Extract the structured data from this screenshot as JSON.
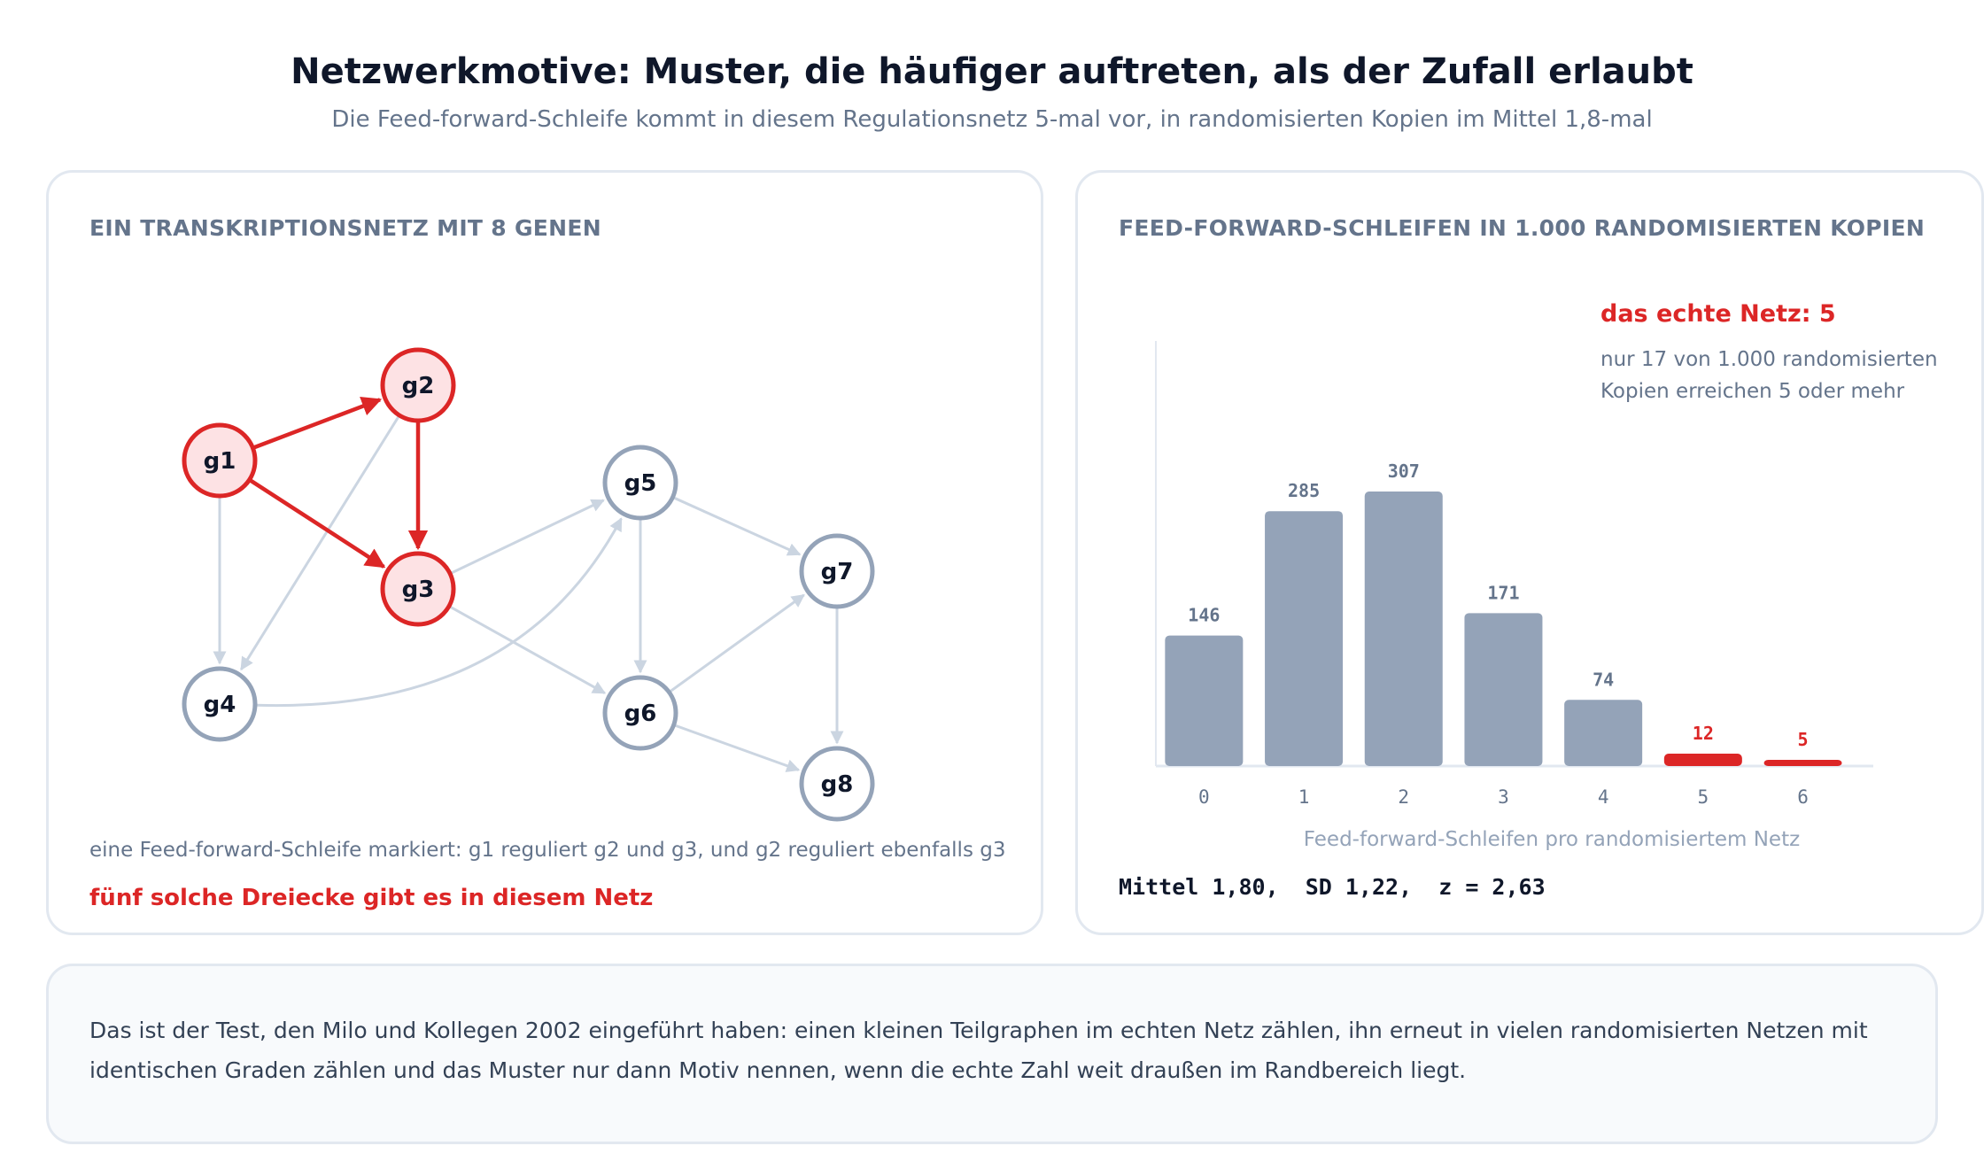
{
  "header": {
    "title": "Netzwerkmotive: Muster, die häufiger auftreten, als der Zufall erlaubt",
    "subtitle": "Die Feed-forward-Schleife kommt in diesem Regulationsnetz 5-mal vor, in randomisierten Kopien im Mittel 1,8-mal"
  },
  "network": {
    "heading": "EIN TRANSKRIPTIONSNETZ MIT 8 GENEN",
    "nodes": [
      {
        "id": "g1",
        "label": "g1",
        "highlight": true
      },
      {
        "id": "g2",
        "label": "g2",
        "highlight": true
      },
      {
        "id": "g3",
        "label": "g3",
        "highlight": true
      },
      {
        "id": "g4",
        "label": "g4",
        "highlight": false
      },
      {
        "id": "g5",
        "label": "g5",
        "highlight": false
      },
      {
        "id": "g6",
        "label": "g6",
        "highlight": false
      },
      {
        "id": "g7",
        "label": "g7",
        "highlight": false
      },
      {
        "id": "g8",
        "label": "g8",
        "highlight": false
      }
    ],
    "edges": [
      {
        "from": "g1",
        "to": "g2",
        "highlight": true
      },
      {
        "from": "g1",
        "to": "g3",
        "highlight": true
      },
      {
        "from": "g2",
        "to": "g3",
        "highlight": true
      },
      {
        "from": "g1",
        "to": "g4",
        "highlight": false
      },
      {
        "from": "g2",
        "to": "g4",
        "highlight": false
      },
      {
        "from": "g3",
        "to": "g5",
        "highlight": false
      },
      {
        "from": "g3",
        "to": "g6",
        "highlight": false
      },
      {
        "from": "g4",
        "to": "g5",
        "highlight": false,
        "curved": true
      },
      {
        "from": "g5",
        "to": "g6",
        "highlight": false
      },
      {
        "from": "g5",
        "to": "g7",
        "highlight": false
      },
      {
        "from": "g6",
        "to": "g7",
        "highlight": false
      },
      {
        "from": "g6",
        "to": "g8",
        "highlight": false
      },
      {
        "from": "g7",
        "to": "g8",
        "highlight": false
      }
    ],
    "caption": "eine Feed-forward-Schleife markiert: g1 reguliert g2 und g3, und g2 reguliert ebenfalls g3",
    "emphasis": "fünf solche Dreiecke gibt es in diesem Netz"
  },
  "chart": {
    "heading": "FEED-FORWARD-SCHLEIFEN IN 1.000 RANDOMISIERTEN KOPIEN",
    "annotation_title": "das echte Netz: 5",
    "annotation_line1": "nur 17 von 1.000 randomisierten",
    "annotation_line2": "Kopien erreichen 5 oder mehr",
    "stats": "Mittel 1,80,  SD 1,22,  z = 2,63"
  },
  "chart_data": {
    "type": "bar",
    "categories": [
      "0",
      "1",
      "2",
      "3",
      "4",
      "5",
      "6"
    ],
    "values": [
      146,
      285,
      307,
      171,
      74,
      12,
      5
    ],
    "highlight_categories": [
      "5",
      "6"
    ],
    "title": "FEED-FORWARD-SCHLEIFEN IN 1.000 RANDOMISIERTEN KOPIEN",
    "xlabel": "Feed-forward-Schleifen pro randomisiertem Netz",
    "ylabel": "",
    "grid": false
  },
  "note": {
    "text": "Das ist der Test, den Milo und Kollegen 2002 eingeführt haben: einen kleinen Teilgraphen im echten Netz zählen, ihn erneut in vielen randomisierten Netzen mit identischen Graden zählen und das Muster nur dann Motiv nennen, wenn die echte Zahl weit draußen im Randbereich liegt."
  },
  "colors": {
    "highlight": "#dc2626",
    "highlight_fill": "#fde2e4",
    "node_stroke": "#94a3b8",
    "edge": "#cbd5e1",
    "bar": "#94a3b8",
    "text_muted": "#64748b"
  }
}
